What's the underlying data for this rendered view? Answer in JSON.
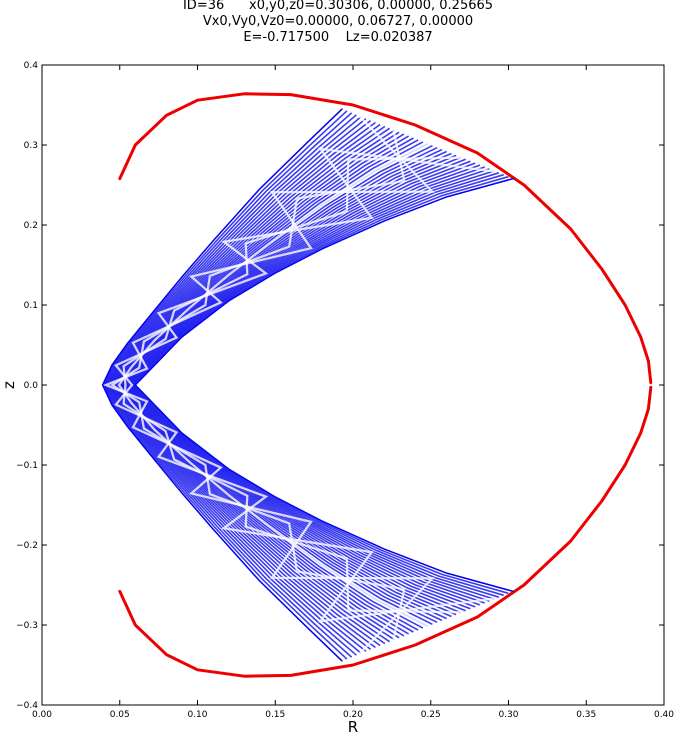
{
  "header": {
    "line1": "ID=36      x0,y0,z0=0.30306, 0.00000, 0.25665",
    "line2": "Vx0,Vy0,Vz0=0.00000, 0.06727, 0.00000",
    "line3": "E=-0.717500    Lz=0.020387"
  },
  "chart_data": {
    "type": "line",
    "title": "ID=36      x0,y0,z0=0.30306, 0.00000, 0.25665\nVx0,Vy0,Vz0=0.00000, 0.06727, 0.00000\nE=-0.717500    Lz=0.020387",
    "xlabel": "R",
    "ylabel": "z",
    "xlim": [
      0.0,
      0.4
    ],
    "ylim": [
      -0.4,
      0.4
    ],
    "x_ticks": [
      "0.00",
      "0.05",
      "0.10",
      "0.15",
      "0.20",
      "0.25",
      "0.30",
      "0.35",
      "0.40"
    ],
    "y_ticks": [
      "−0.4",
      "−0.3",
      "−0.2",
      "−0.1",
      "0.0",
      "0.1",
      "0.2",
      "0.3",
      "0.4"
    ],
    "grid": false,
    "series": [
      {
        "color": "#ee0000",
        "description": "zero-velocity curve (upper branch)",
        "x": [
          0.05,
          0.06,
          0.08,
          0.1,
          0.13,
          0.16,
          0.2,
          0.24,
          0.28,
          0.31,
          0.34,
          0.36,
          0.375,
          0.385,
          0.39,
          0.3915
        ],
        "y": [
          0.258,
          0.3,
          0.337,
          0.356,
          0.364,
          0.363,
          0.35,
          0.325,
          0.29,
          0.25,
          0.195,
          0.145,
          0.1,
          0.06,
          0.03,
          0.003
        ]
      },
      {
        "color": "#ee0000",
        "description": "zero-velocity curve (lower branch)",
        "x": [
          0.05,
          0.06,
          0.08,
          0.1,
          0.13,
          0.16,
          0.2,
          0.24,
          0.28,
          0.31,
          0.34,
          0.36,
          0.375,
          0.385,
          0.39,
          0.3915
        ],
        "y": [
          -0.258,
          -0.3,
          -0.337,
          -0.356,
          -0.364,
          -0.363,
          -0.35,
          -0.325,
          -0.29,
          -0.25,
          -0.195,
          -0.145,
          -0.1,
          -0.06,
          -0.03,
          -0.003
        ]
      },
      {
        "color": "#0000ee",
        "description": "orbit region envelope (outer boundary)",
        "x": [
          0.193,
          0.17,
          0.14,
          0.11,
          0.09,
          0.07,
          0.055,
          0.045,
          0.039,
          0.045,
          0.055,
          0.07,
          0.09,
          0.11,
          0.14,
          0.17,
          0.193
        ],
        "y": [
          0.345,
          0.302,
          0.245,
          0.18,
          0.135,
          0.088,
          0.052,
          0.025,
          0.0,
          -0.025,
          -0.052,
          -0.088,
          -0.135,
          -0.18,
          -0.245,
          -0.302,
          -0.345
        ]
      },
      {
        "color": "#0000ee",
        "description": "orbit region envelope (inner boundary)",
        "x": [
          0.303,
          0.26,
          0.22,
          0.18,
          0.15,
          0.12,
          0.09,
          0.07,
          0.06,
          0.07,
          0.09,
          0.12,
          0.15,
          0.18,
          0.22,
          0.26,
          0.303
        ],
        "y": [
          0.258,
          0.235,
          0.205,
          0.17,
          0.14,
          0.105,
          0.06,
          0.02,
          0.0,
          -0.02,
          -0.06,
          -0.105,
          -0.14,
          -0.17,
          -0.205,
          -0.235,
          -0.258
        ]
      }
    ]
  }
}
